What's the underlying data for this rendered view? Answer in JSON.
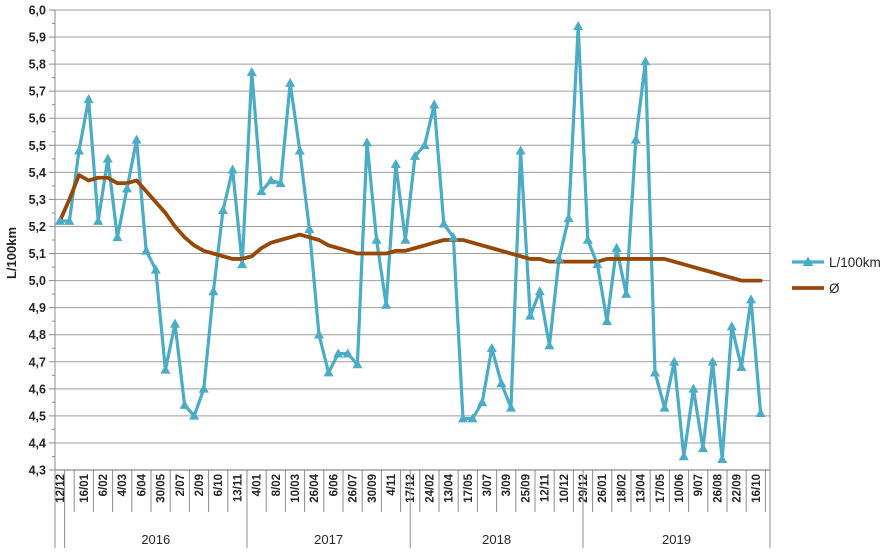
{
  "chart_data": {
    "type": "line",
    "title": "",
    "ylabel": "L/100km",
    "ylim": [
      4.3,
      6.0
    ],
    "ytick_step": 0.1,
    "decimal_separator": ",",
    "grid": true,
    "legend_position": "right",
    "y_tick_labels": [
      "6,0",
      "5,9",
      "5,8",
      "5,7",
      "5,6",
      "5,5",
      "5,4",
      "5,3",
      "5,2",
      "5,1",
      "5,0",
      "4,9",
      "4,8",
      "4,7",
      "4,6",
      "4,5",
      "4,4",
      "4,3"
    ],
    "x_labels": [
      "12/12",
      "16/01",
      "6/02",
      "4/03",
      "6/04",
      "30/05",
      "2/07",
      "2/09",
      "6/10",
      "13/11",
      "4/01",
      "8/02",
      "10/03",
      "26/04",
      "6/06",
      "26/07",
      "30/09",
      "4/11",
      "17/12",
      "24/02",
      "13/04",
      "17/05",
      "3/07",
      "3/09",
      "25/09",
      "12/11",
      "10/12",
      "29/12",
      "26/01",
      "18/02",
      "13/04",
      "17/05",
      "10/06",
      "9/07",
      "26/08",
      "22/09",
      "16/10"
    ],
    "label_every": 2,
    "year_groups": [
      {
        "label": "",
        "from_point": 0,
        "to_point": 0
      },
      {
        "label": "2016",
        "from_point": 1,
        "to_point": 19
      },
      {
        "label": "2017",
        "from_point": 20,
        "to_point": 36
      },
      {
        "label": "2018",
        "from_point": 37,
        "to_point": 54
      },
      {
        "label": "2019",
        "from_point": 55,
        "to_point": 73
      }
    ],
    "series": [
      {
        "name": "L/100km",
        "color": "#4BACC6",
        "marker": "triangle",
        "values": [
          5.22,
          5.22,
          5.48,
          5.67,
          5.22,
          5.45,
          5.16,
          5.34,
          5.52,
          5.11,
          5.04,
          4.67,
          4.84,
          4.54,
          4.5,
          4.6,
          4.96,
          5.26,
          5.41,
          5.06,
          5.77,
          5.33,
          5.37,
          5.36,
          5.73,
          5.48,
          5.19,
          4.8,
          4.66,
          4.73,
          4.73,
          4.69,
          5.51,
          5.15,
          4.91,
          5.43,
          5.15,
          5.46,
          5.5,
          5.65,
          5.21,
          5.16,
          4.49,
          4.49,
          4.55,
          4.75,
          4.62,
          4.53,
          5.48,
          4.87,
          4.96,
          4.76,
          5.08,
          5.23,
          5.94,
          5.15,
          5.06,
          4.85,
          5.12,
          4.95,
          5.52,
          5.81,
          4.66,
          4.53,
          4.7,
          4.35,
          4.6,
          4.38,
          4.7,
          4.34,
          4.83,
          4.68,
          4.93,
          4.51
        ]
      },
      {
        "name": "Ø",
        "color": "#974706",
        "marker": "none",
        "values": [
          5.22,
          5.3,
          5.39,
          5.37,
          5.38,
          5.38,
          5.36,
          5.36,
          5.37,
          5.33,
          5.29,
          5.25,
          5.2,
          5.16,
          5.13,
          5.11,
          5.1,
          5.09,
          5.08,
          5.08,
          5.09,
          5.12,
          5.14,
          5.15,
          5.16,
          5.17,
          5.16,
          5.15,
          5.13,
          5.12,
          5.11,
          5.1,
          5.1,
          5.1,
          5.1,
          5.11,
          5.11,
          5.12,
          5.13,
          5.14,
          5.15,
          5.15,
          5.15,
          5.14,
          5.13,
          5.12,
          5.11,
          5.1,
          5.09,
          5.08,
          5.08,
          5.07,
          5.07,
          5.07,
          5.07,
          5.07,
          5.07,
          5.08,
          5.08,
          5.08,
          5.08,
          5.08,
          5.08,
          5.08,
          5.07,
          5.06,
          5.05,
          5.04,
          5.03,
          5.02,
          5.01,
          5.0,
          5.0,
          5.0
        ]
      }
    ],
    "colors": {
      "text": "#262626",
      "gridline": "#9e9e9e",
      "axis": "#8c8c8c",
      "background": "#ffffff"
    }
  }
}
